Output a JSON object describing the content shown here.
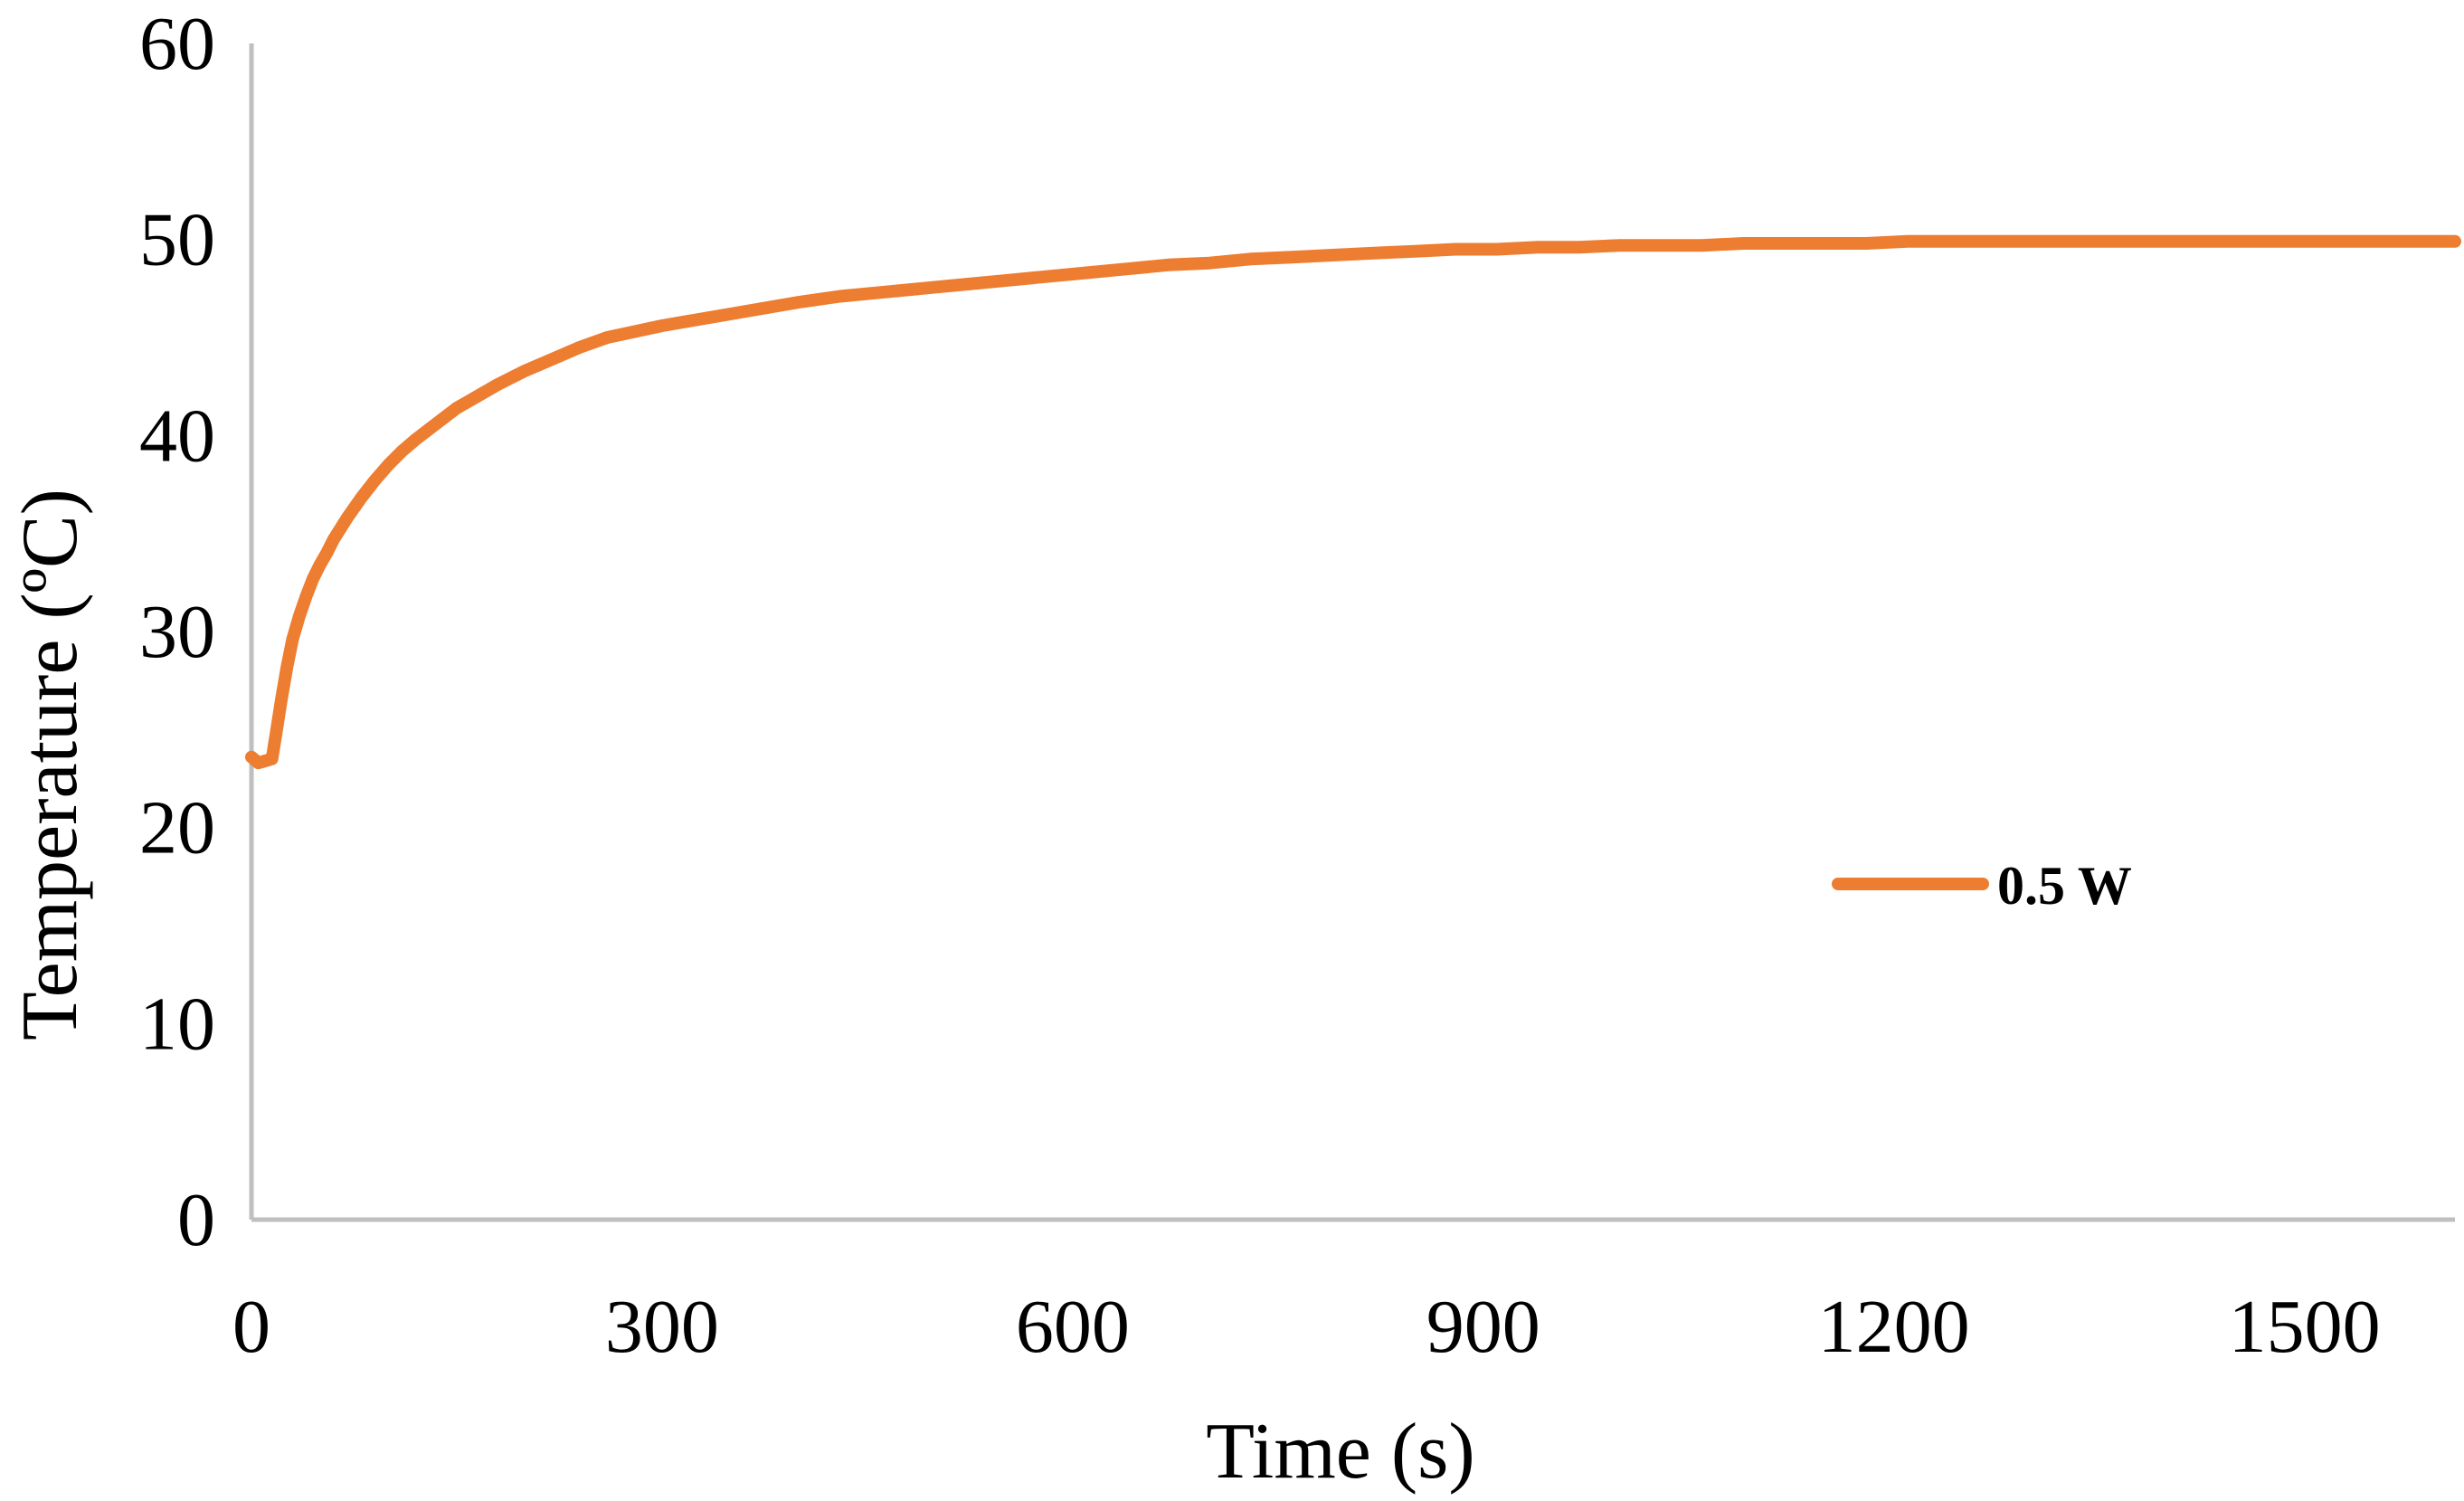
{
  "chart_data": {
    "type": "line",
    "xlabel": "Time (s)",
    "ylabel": "Temperature (ºC)",
    "xlim": [
      0,
      1610
    ],
    "ylim": [
      0,
      60
    ],
    "x_ticks": [
      0,
      300,
      600,
      900,
      1200,
      1500
    ],
    "y_ticks": [
      0,
      10,
      20,
      30,
      40,
      50,
      60
    ],
    "grid": false,
    "legend_position": "right",
    "series": [
      {
        "name": "0.5 W",
        "color": "#ED7D31",
        "x": [
          0,
          5,
          10,
          15,
          18,
          22,
          26,
          30,
          35,
          40,
          45,
          50,
          55,
          60,
          70,
          80,
          90,
          100,
          110,
          120,
          135,
          150,
          165,
          180,
          200,
          220,
          240,
          260,
          280,
          300,
          325,
          350,
          375,
          400,
          430,
          460,
          490,
          520,
          550,
          580,
          610,
          640,
          670,
          700,
          730,
          760,
          790,
          820,
          850,
          880,
          910,
          940,
          970,
          1000,
          1030,
          1060,
          1090,
          1120,
          1150,
          1180,
          1210,
          1240,
          1270,
          1300,
          1330,
          1360,
          1390,
          1420,
          1450,
          1480,
          1510,
          1540,
          1570,
          1600,
          1610
        ],
        "y": [
          23.6,
          23.3,
          23.4,
          23.5,
          24.8,
          26.6,
          28.2,
          29.6,
          30.8,
          31.8,
          32.7,
          33.4,
          34.0,
          34.7,
          35.8,
          36.8,
          37.7,
          38.5,
          39.2,
          39.8,
          40.6,
          41.4,
          42.0,
          42.6,
          43.3,
          43.9,
          44.5,
          45.0,
          45.3,
          45.6,
          45.9,
          46.2,
          46.5,
          46.8,
          47.1,
          47.3,
          47.5,
          47.7,
          47.9,
          48.1,
          48.3,
          48.5,
          48.7,
          48.8,
          49.0,
          49.1,
          49.2,
          49.3,
          49.4,
          49.5,
          49.5,
          49.6,
          49.6,
          49.7,
          49.7,
          49.7,
          49.8,
          49.8,
          49.8,
          49.8,
          49.9,
          49.9,
          49.9,
          49.9,
          49.9,
          49.9,
          49.9,
          49.9,
          49.9,
          49.9,
          49.9,
          49.9,
          49.9,
          49.9,
          49.9
        ]
      }
    ]
  }
}
